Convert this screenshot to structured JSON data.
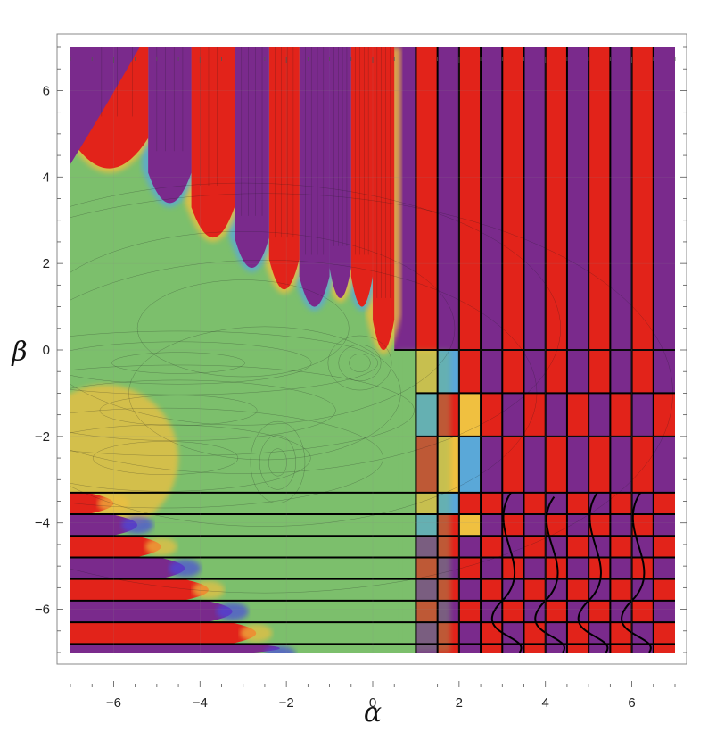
{
  "chart_data": {
    "type": "heatmap",
    "subtype": "contour plot",
    "title": "",
    "xlabel": "α",
    "ylabel": "β",
    "xlim": [
      -7,
      7
    ],
    "ylim": [
      -7,
      7
    ],
    "x_ticks": [
      -6,
      -4,
      -2,
      0,
      2,
      4,
      6
    ],
    "y_ticks": [
      6,
      4,
      2,
      0,
      -2,
      -4,
      -6
    ],
    "x_tick_labels": [
      "−6",
      "−4",
      "−2",
      "0",
      "2",
      "4",
      "6"
    ],
    "y_tick_labels": [
      "6",
      "4",
      "2",
      "0",
      "−2",
      "−4",
      "−6"
    ],
    "grid": true,
    "legend": "none",
    "colormap": [
      "#6a1f8a",
      "#3a3ad8",
      "#4fa0d8",
      "#7cbf6c",
      "#e8b84a",
      "#e63a24"
    ],
    "colors": {
      "purple": "#7a2a8c",
      "red": "#e2231a",
      "blue": "#4a4ae0",
      "cyan": "#5aa8d8",
      "green": "#7cbf6c",
      "yellow": "#f0c040",
      "orange": "#e87a30",
      "contour": "#1a1a1a"
    },
    "features": {
      "horizontal_boundaries_beta": [
        -3.3,
        -3.8,
        -4.3,
        -4.8,
        -5.3,
        -5.8,
        -6.3,
        -6.8
      ],
      "vertical_boundaries_alpha": [
        1,
        1.5,
        2,
        2.5,
        3,
        3.5,
        4,
        4.5,
        5,
        5.5,
        6,
        6.5
      ],
      "upper_right_corner": [
        0.5,
        0
      ],
      "green_region": "central plateau for alpha < 1 and beta between about -3.3 and 3"
    }
  }
}
